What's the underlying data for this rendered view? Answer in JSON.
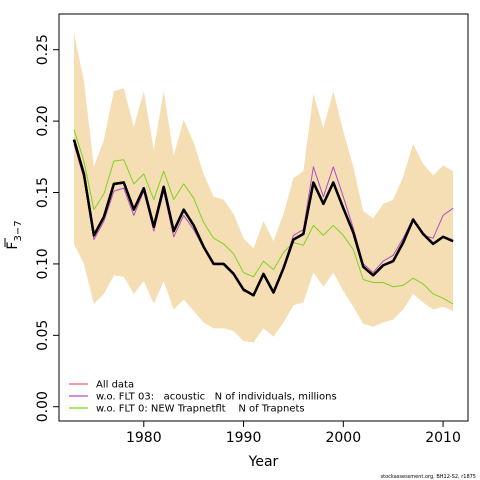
{
  "chart_data": {
    "type": "line",
    "xlabel": "Year",
    "ylabel_main": "F",
    "ylabel_sub": "3−7",
    "xlim": [
      1971.5,
      2012.5
    ],
    "ylim": [
      -0.01,
      0.275
    ],
    "x_ticks": [
      1980,
      1990,
      2000,
      2010
    ],
    "y_ticks": [
      0.0,
      0.05,
      0.1,
      0.15,
      0.2,
      0.25
    ],
    "y_tick_labels": [
      "0.00",
      "0.05",
      "0.10",
      "0.15",
      "0.20",
      "0.25"
    ],
    "x": [
      1973,
      1974,
      1975,
      1976,
      1977,
      1978,
      1979,
      1980,
      1981,
      1982,
      1983,
      1984,
      1985,
      1986,
      1987,
      1988,
      1989,
      1990,
      1991,
      1992,
      1993,
      1994,
      1995,
      1996,
      1997,
      1998,
      1999,
      2000,
      2001,
      2002,
      2003,
      2004,
      2005,
      2006,
      2007,
      2008,
      2009,
      2010,
      2011
    ],
    "band": {
      "color": "#f5deb3",
      "upper": [
        0.262,
        0.228,
        0.168,
        0.187,
        0.221,
        0.223,
        0.196,
        0.221,
        0.18,
        0.221,
        0.176,
        0.201,
        0.185,
        0.163,
        0.147,
        0.145,
        0.135,
        0.118,
        0.111,
        0.13,
        0.116,
        0.135,
        0.16,
        0.165,
        0.219,
        0.195,
        0.221,
        0.193,
        0.168,
        0.137,
        0.132,
        0.142,
        0.145,
        0.161,
        0.184,
        0.17,
        0.162,
        0.169,
        0.165
      ],
      "lower": [
        0.114,
        0.1,
        0.072,
        0.079,
        0.092,
        0.091,
        0.079,
        0.088,
        0.072,
        0.088,
        0.068,
        0.075,
        0.067,
        0.059,
        0.055,
        0.055,
        0.053,
        0.046,
        0.045,
        0.055,
        0.049,
        0.059,
        0.071,
        0.073,
        0.094,
        0.084,
        0.094,
        0.081,
        0.07,
        0.058,
        0.056,
        0.059,
        0.061,
        0.068,
        0.079,
        0.073,
        0.068,
        0.07,
        0.067
      ]
    },
    "series": [
      {
        "color": "#000000",
        "width": 2.4,
        "values": [
          0.187,
          0.163,
          0.12,
          0.133,
          0.156,
          0.157,
          0.138,
          0.153,
          0.126,
          0.154,
          0.123,
          0.138,
          0.127,
          0.112,
          0.1,
          0.1,
          0.093,
          0.082,
          0.078,
          0.093,
          0.08,
          0.097,
          0.117,
          0.121,
          0.157,
          0.142,
          0.157,
          0.139,
          0.122,
          0.098,
          0.092,
          0.099,
          0.102,
          0.115,
          0.131,
          0.121,
          0.114,
          0.119,
          0.116
        ]
      },
      {
        "name": "All data",
        "color": "#e8636b",
        "width": 1.0,
        "values": [
          0.187,
          0.163,
          0.12,
          0.133,
          0.156,
          0.157,
          0.138,
          0.153,
          0.126,
          0.154,
          0.123,
          0.138,
          0.127,
          0.112,
          0.1,
          0.1,
          0.093,
          0.082,
          0.078,
          0.093,
          0.08,
          0.097,
          0.117,
          0.121,
          0.157,
          0.142,
          0.157,
          0.139,
          0.122,
          0.098,
          0.092,
          0.099,
          0.102,
          0.115,
          0.131,
          0.121,
          0.114,
          0.119,
          0.116
        ]
      },
      {
        "name": "w.o. FLT 03:   acoustic   N of individuals, millions",
        "color": "#b44ac6",
        "width": 1.0,
        "values": [
          0.184,
          0.16,
          0.117,
          0.13,
          0.151,
          0.153,
          0.134,
          0.151,
          0.123,
          0.151,
          0.119,
          0.134,
          0.124,
          0.111,
          0.1,
          0.1,
          0.093,
          0.081,
          0.078,
          0.092,
          0.08,
          0.098,
          0.12,
          0.124,
          0.168,
          0.147,
          0.168,
          0.147,
          0.125,
          0.1,
          0.094,
          0.102,
          0.106,
          0.118,
          0.132,
          0.12,
          0.118,
          0.134,
          0.139
        ]
      },
      {
        "name": "w.o. FLT 0: NEW Trapnetflt    N of Trapnets",
        "color": "#7ed321",
        "width": 1.0,
        "values": [
          0.194,
          0.172,
          0.138,
          0.149,
          0.172,
          0.173,
          0.156,
          0.163,
          0.145,
          0.165,
          0.145,
          0.156,
          0.146,
          0.129,
          0.118,
          0.114,
          0.107,
          0.094,
          0.091,
          0.102,
          0.096,
          0.108,
          0.115,
          0.113,
          0.127,
          0.12,
          0.127,
          0.12,
          0.11,
          0.089,
          0.087,
          0.087,
          0.084,
          0.085,
          0.09,
          0.086,
          0.079,
          0.076,
          0.072
        ]
      }
    ],
    "legend": {
      "position": "bottom-left",
      "entries": [
        {
          "label": "All data",
          "color": "#e8636b"
        },
        {
          "label": "w.o. FLT 03:   acoustic   N of individuals, millions",
          "color": "#b44ac6"
        },
        {
          "label": "w.o. FLT 0: NEW Trapnetflt    N of Trapnets",
          "color": "#7ed321"
        }
      ]
    },
    "credit": "stockassessment.org, BH12-S2, r1875",
    "grid": false
  }
}
